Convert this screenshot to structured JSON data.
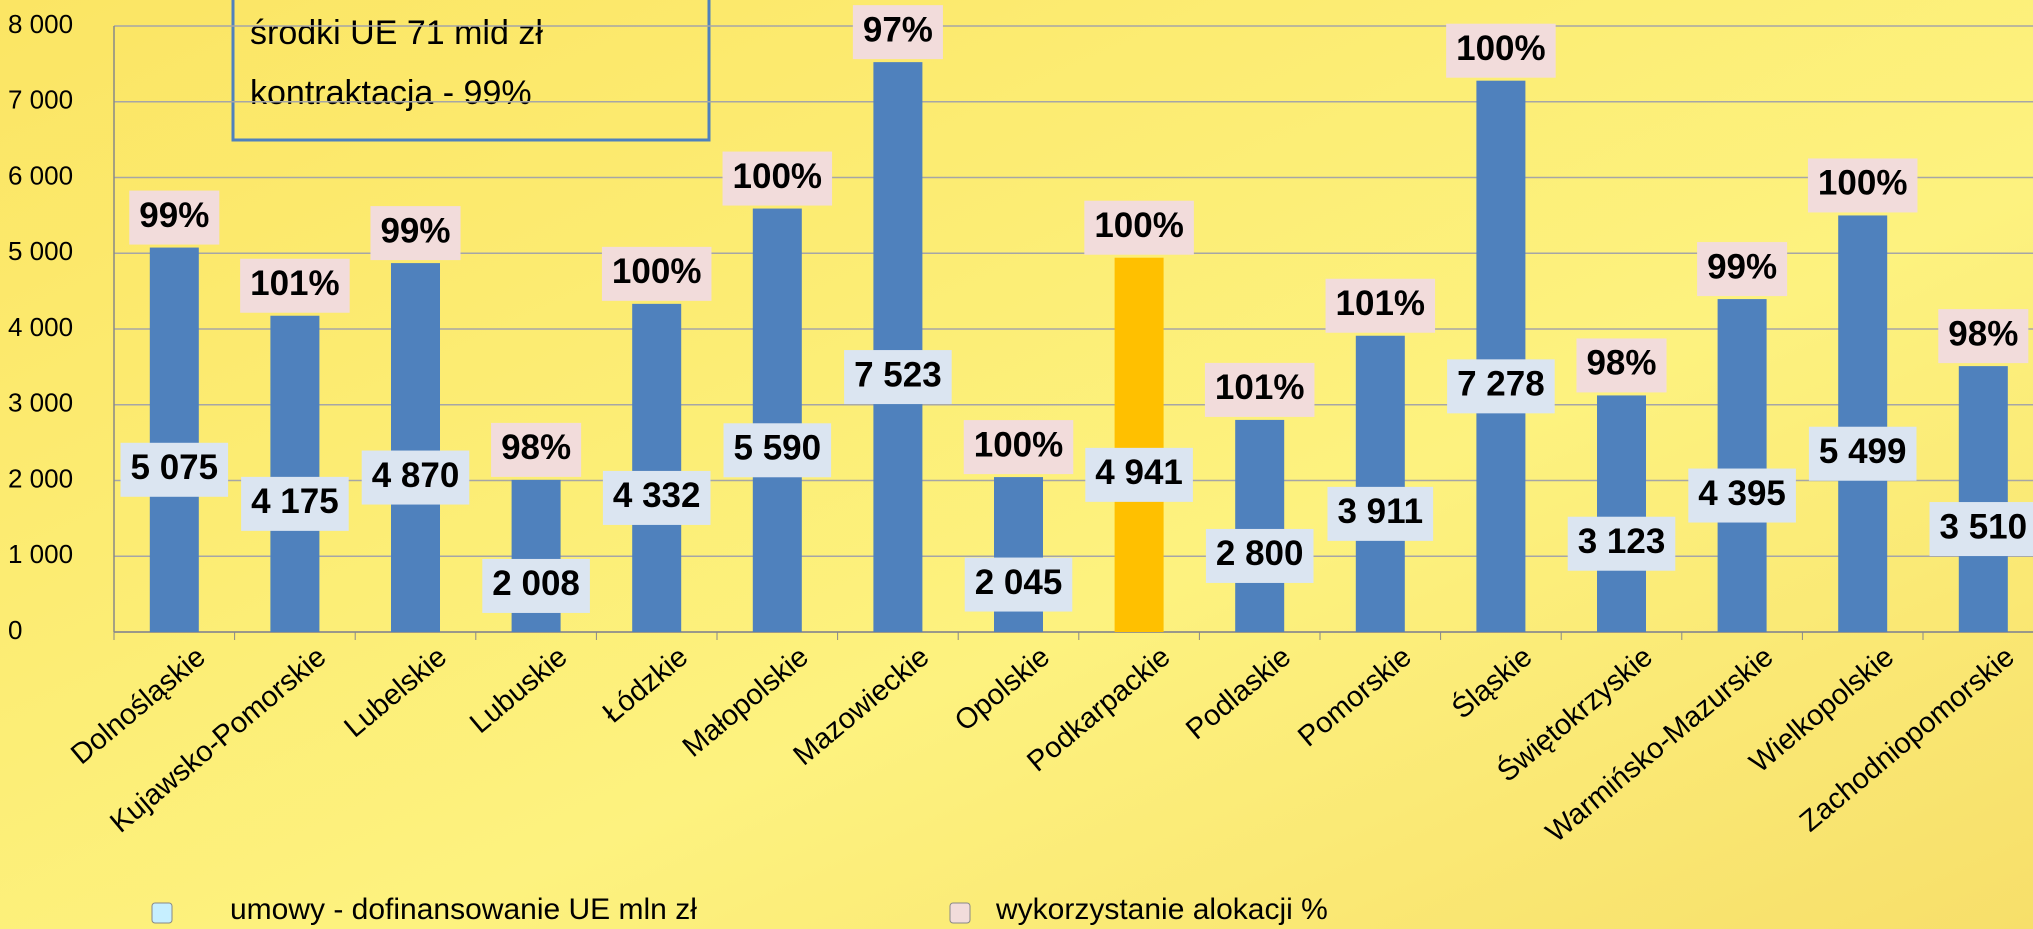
{
  "chart_data": {
    "type": "bar",
    "annotations": [
      "środki UE 71 mld zł",
      "kontraktacja - 99%"
    ],
    "categories": [
      "Dolnośląskie",
      "Kujawsko-Pomorskie",
      "Lubelskie",
      "Lubuskie",
      "Łódzkie",
      "Małopolskie",
      "Mazowieckie",
      "Opolskie",
      "Podkarpackie",
      "Podlaskie",
      "Pomorskie",
      "Śląskie",
      "Świętokrzyskie",
      "Warmińsko-Mazurskie",
      "Wielkopolskie",
      "Zachodniopomorskie"
    ],
    "series": [
      {
        "name": "umowy - dofinansowanie UE mln zł",
        "color": "#c6efff",
        "bar_colors": [
          "#4f81bd",
          "#4f81bd",
          "#4f81bd",
          "#4f81bd",
          "#4f81bd",
          "#4f81bd",
          "#4f81bd",
          "#4f81bd",
          "#ffc000",
          "#4f81bd",
          "#4f81bd",
          "#4f81bd",
          "#4f81bd",
          "#4f81bd",
          "#4f81bd",
          "#4f81bd"
        ],
        "values": [
          5075,
          4175,
          4870,
          2008,
          4332,
          5590,
          7523,
          2045,
          4941,
          2800,
          3911,
          7278,
          3123,
          4395,
          5499,
          3510
        ],
        "value_labels": [
          "5 075",
          "4 175",
          "4 870",
          "2 008",
          "4 332",
          "5 590",
          "7 523",
          "2 045",
          "4 941",
          "2 800",
          "3 911",
          "7 278",
          "3 123",
          "4 395",
          "5 499",
          "3 510"
        ]
      },
      {
        "name": "wykorzystanie alokacji %",
        "color": "#f2dcdb",
        "values": [
          99,
          101,
          99,
          98,
          100,
          100,
          97,
          100,
          100,
          101,
          101,
          100,
          98,
          99,
          100,
          98
        ],
        "value_labels": [
          "99%",
          "101%",
          "99%",
          "98%",
          "100%",
          "100%",
          "97%",
          "100%",
          "100%",
          "101%",
          "101%",
          "100%",
          "98%",
          "99%",
          "100%",
          "98%"
        ]
      }
    ],
    "ylim": [
      0,
      8000
    ],
    "yticks": [
      {
        "value": 0,
        "label": "0"
      },
      {
        "value": 1000,
        "label": "1 000"
      },
      {
        "value": 2000,
        "label": "2 000"
      },
      {
        "value": 3000,
        "label": "3 000"
      },
      {
        "value": 4000,
        "label": "4 000"
      },
      {
        "value": 5000,
        "label": "5 000"
      },
      {
        "value": 6000,
        "label": "6 000"
      },
      {
        "value": 7000,
        "label": "7 000"
      },
      {
        "value": 8000,
        "label": "8 000"
      }
    ],
    "grid": true
  }
}
